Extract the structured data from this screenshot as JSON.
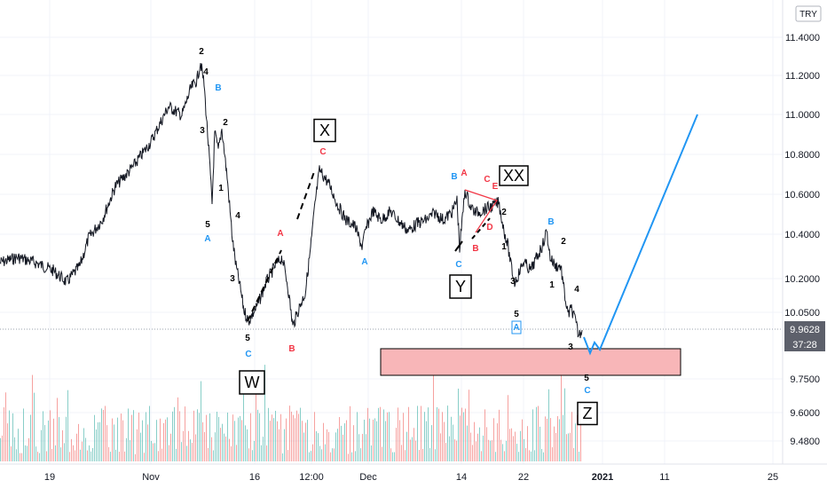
{
  "chart_data": {
    "type": "line",
    "currency_badge": "TRY",
    "y_ticks": [
      "11.4000",
      "11.2000",
      "11.0000",
      "10.8000",
      "10.6000",
      "10.4000",
      "10.2000",
      "10.0500",
      "9.7500",
      "9.6000",
      "9.4800"
    ],
    "x_ticks": [
      "19",
      "Nov",
      "16",
      "12:00",
      "Dec",
      "14",
      "22",
      "2021",
      "11",
      "25"
    ],
    "last_price": "9.9628",
    "countdown": "37:28",
    "wave_labels": [
      {
        "text": "2",
        "color": "#000000"
      },
      {
        "text": "4",
        "color": "#000000"
      },
      {
        "text": "B",
        "color": "#2196f3"
      },
      {
        "text": "3",
        "color": "#000000"
      },
      {
        "text": "2",
        "color": "#000000"
      },
      {
        "text": "1",
        "color": "#000000"
      },
      {
        "text": "4",
        "color": "#000000"
      },
      {
        "text": "5",
        "color": "#000000"
      },
      {
        "text": "A",
        "color": "#2196f3"
      },
      {
        "text": "3",
        "color": "#000000"
      },
      {
        "text": "5",
        "color": "#000000"
      },
      {
        "text": "C",
        "color": "#2196f3"
      },
      {
        "text": "A",
        "color": "#f23645"
      },
      {
        "text": "B",
        "color": "#f23645"
      },
      {
        "text": "C",
        "color": "#f23645"
      },
      {
        "text": "A",
        "color": "#2196f3"
      },
      {
        "text": "B",
        "color": "#2196f3"
      },
      {
        "text": "C",
        "color": "#2196f3"
      },
      {
        "text": "A",
        "color": "#f23645"
      },
      {
        "text": "B",
        "color": "#f23645"
      },
      {
        "text": "C",
        "color": "#f23645"
      },
      {
        "text": "D",
        "color": "#f23645"
      },
      {
        "text": "E",
        "color": "#f23645"
      },
      {
        "text": "2",
        "color": "#000000"
      },
      {
        "text": "1",
        "color": "#000000"
      },
      {
        "text": "3",
        "color": "#000000"
      },
      {
        "text": "5",
        "color": "#000000"
      },
      {
        "text": "A",
        "color": "#2196f3"
      },
      {
        "text": "B",
        "color": "#2196f3"
      },
      {
        "text": "2",
        "color": "#000000"
      },
      {
        "text": "1",
        "color": "#000000"
      },
      {
        "text": "4",
        "color": "#000000"
      },
      {
        "text": "3",
        "color": "#000000"
      },
      {
        "text": "5",
        "color": "#000000"
      },
      {
        "text": "C",
        "color": "#2196f3"
      }
    ],
    "box_labels": [
      "X",
      "W",
      "Y",
      "XX",
      "Z"
    ],
    "colors": {
      "price": "#131722",
      "projection": "#2196f3",
      "zone_fill": "#f8b6b8",
      "zone_stroke": "#000000",
      "volume_up": "#26a69a",
      "volume_down": "#ef5350"
    }
  }
}
